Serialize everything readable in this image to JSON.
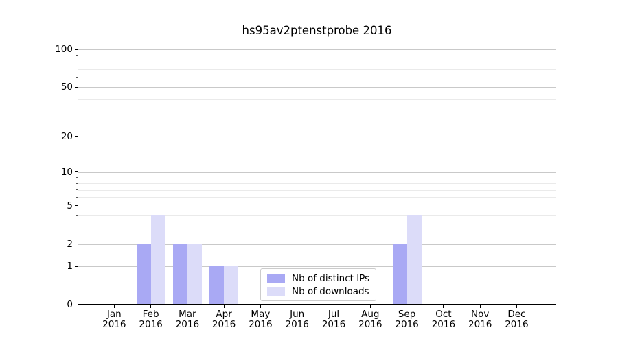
{
  "chart_data": {
    "type": "bar",
    "title": "hs95av2ptenstprobe 2016",
    "categories": [
      "Jan 2016",
      "Feb 2016",
      "Mar 2016",
      "Apr 2016",
      "May 2016",
      "Jun 2016",
      "Jul 2016",
      "Aug 2016",
      "Sep 2016",
      "Oct 2016",
      "Nov 2016",
      "Dec 2016"
    ],
    "series": [
      {
        "name": "Nb of distinct IPs",
        "color": "#a9a9f4",
        "values": [
          0,
          2,
          2,
          1,
          0,
          0,
          0,
          0,
          2,
          0,
          0,
          0
        ]
      },
      {
        "name": "Nb of downloads",
        "color": "#dcdcf9",
        "values": [
          0,
          4,
          2,
          1,
          0,
          0,
          0,
          0,
          4,
          0,
          0,
          0
        ]
      }
    ],
    "xlabel": "",
    "ylabel": "",
    "yscale": "log1p",
    "ylim": [
      0,
      113
    ],
    "y_major_ticks": [
      0,
      1,
      2,
      5,
      10,
      20,
      50,
      100
    ],
    "y_minor_ticks": [
      3,
      4,
      6,
      7,
      8,
      9,
      30,
      40,
      60,
      70,
      80,
      90
    ],
    "grid": "horizontal",
    "legend": {
      "position": "lower center",
      "entries": [
        "Nb of distinct IPs",
        "Nb of downloads"
      ]
    }
  },
  "colors": {
    "background": "#ffffff",
    "spine": "#000000",
    "major_grid": "#c9c9c9",
    "minor_grid": "#eaeaea",
    "legend_border": "#cccccc",
    "tick_text": "#000000"
  }
}
